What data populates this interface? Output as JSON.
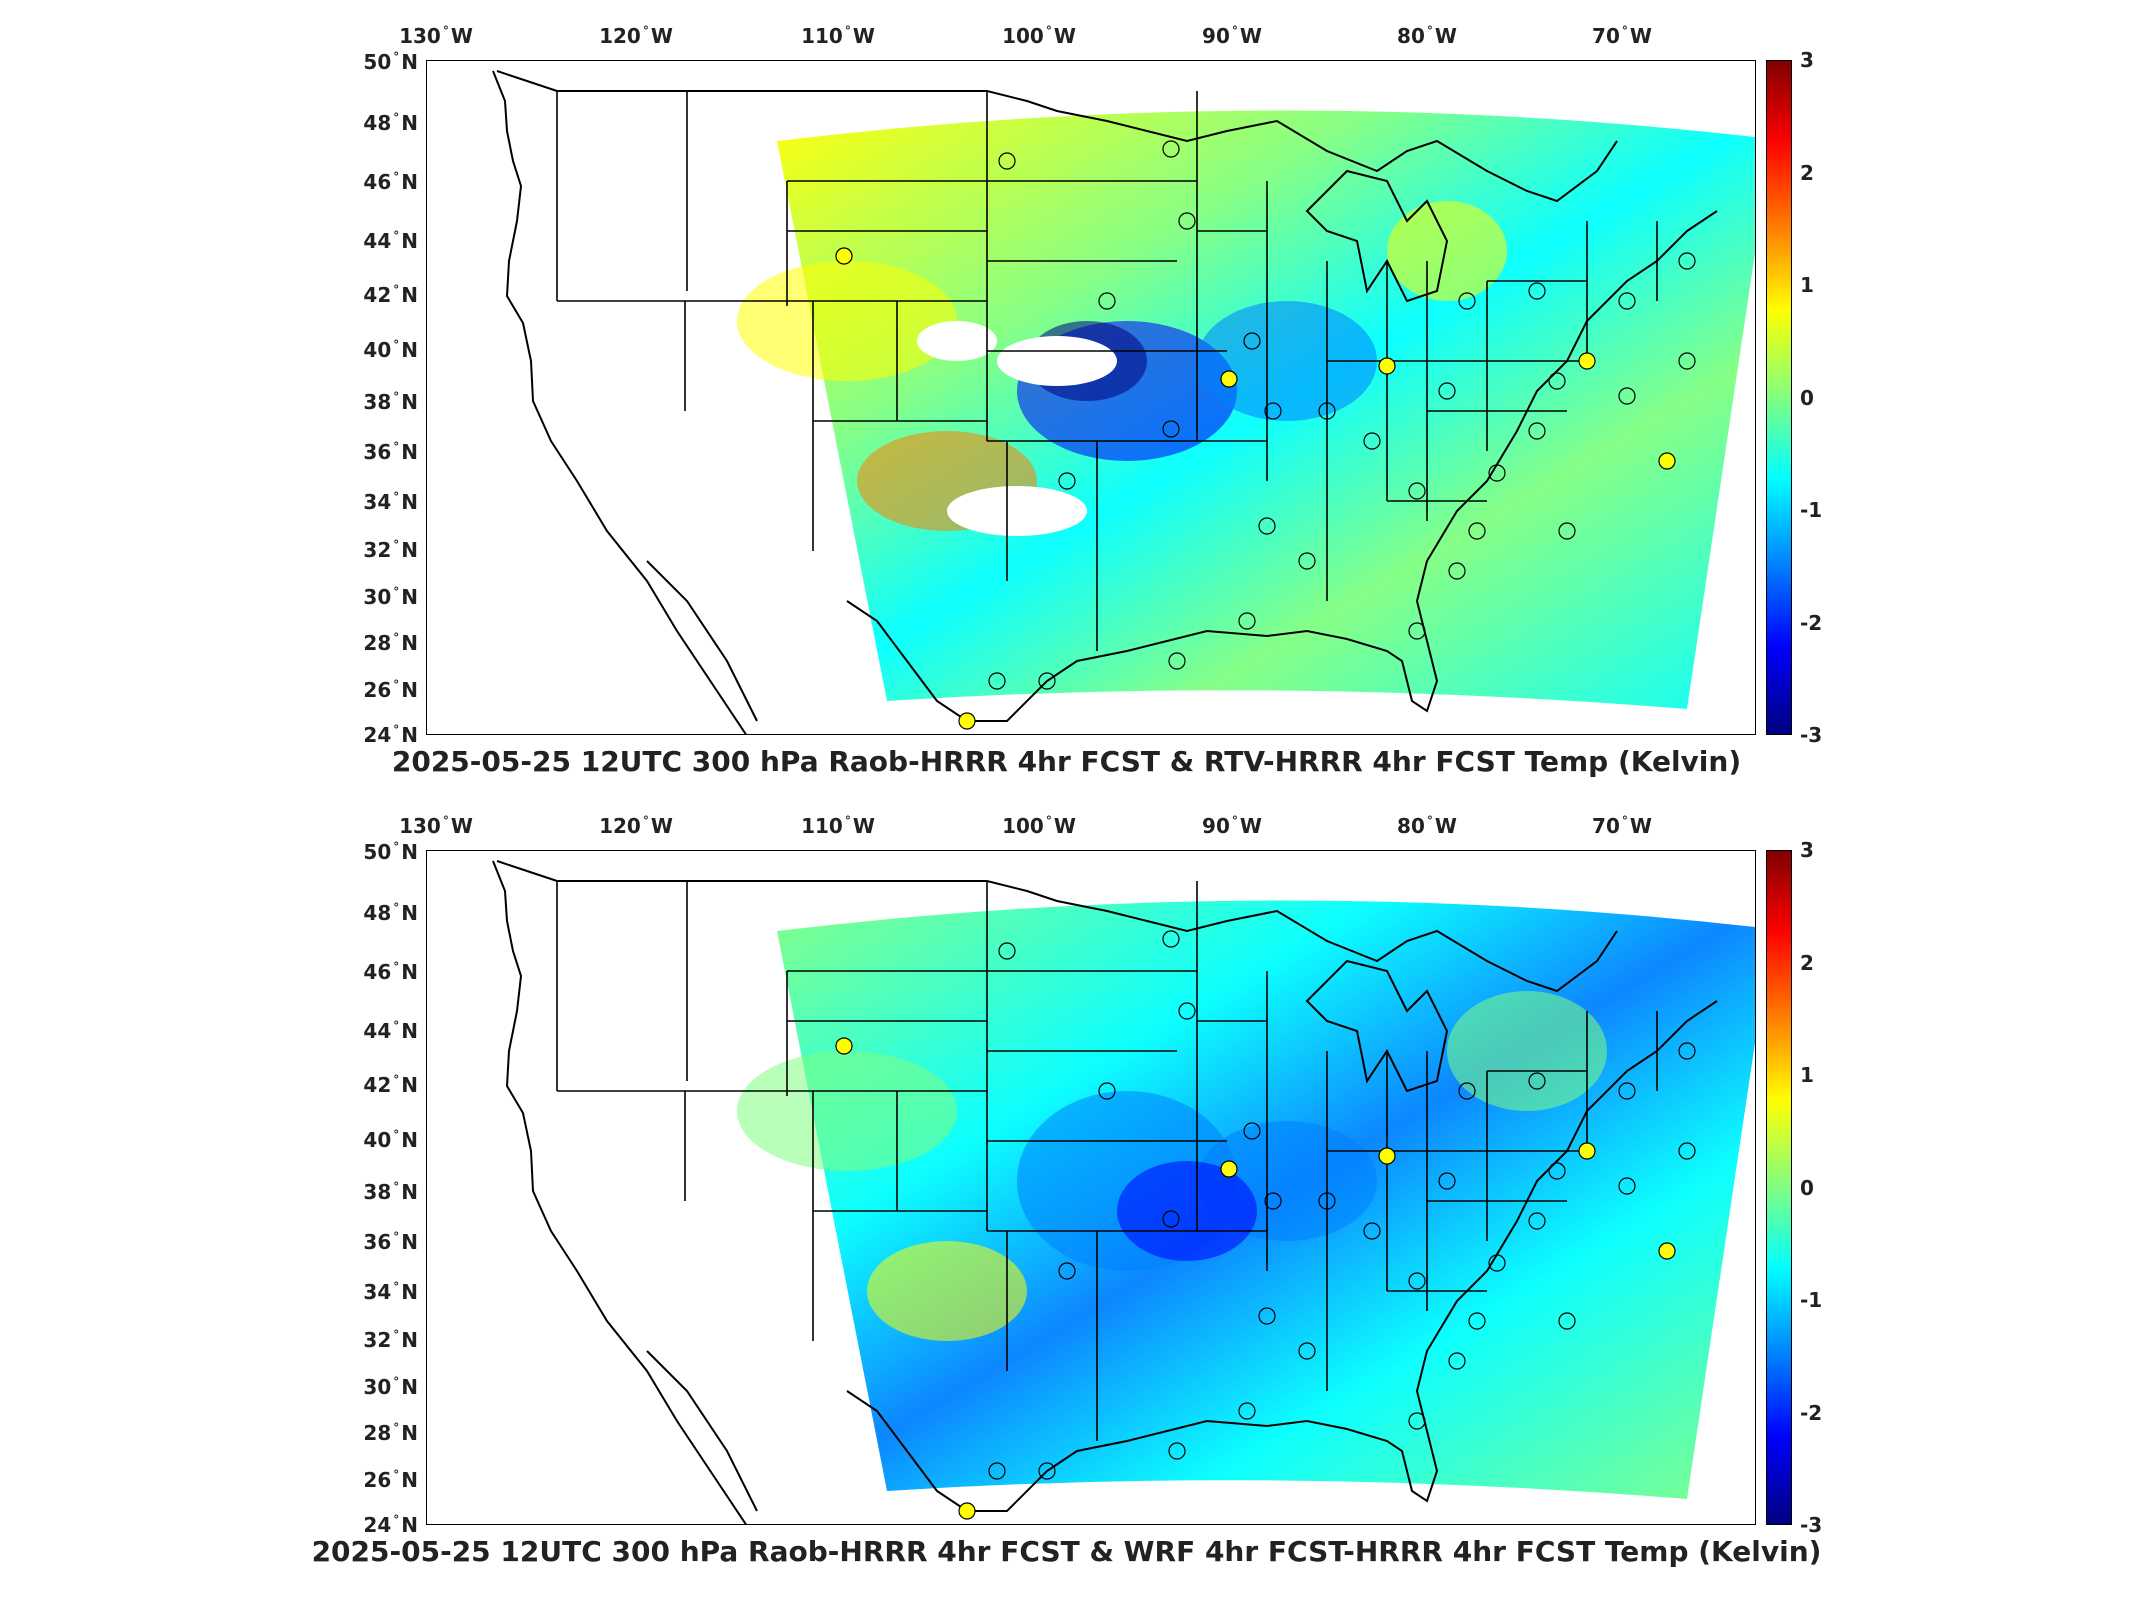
{
  "lon_ticks": [
    "130",
    "120",
    "110",
    "100",
    "90",
    "80",
    "70"
  ],
  "lon_suffix": "W",
  "lat_ticks": [
    "50",
    "48",
    "46",
    "44",
    "42",
    "40",
    "38",
    "36",
    "34",
    "32",
    "30",
    "28",
    "26",
    "24"
  ],
  "lat_suffix": "N",
  "colorbar": {
    "ticks": [
      "3",
      "2",
      "1",
      "0",
      "-1",
      "-2",
      "-3"
    ],
    "colors": [
      "#800000",
      "#ff0000",
      "#ff8000",
      "#ffff00",
      "#80ff80",
      "#00ffff",
      "#0080ff",
      "#0000ff",
      "#000080"
    ]
  },
  "panels": [
    {
      "title": "2025-05-25 12UTC 300 hPa Raob-HRRR 4hr FCST & RTV-HRRR 4hr FCST Temp (Kelvin)"
    },
    {
      "title": "2025-05-25 12UTC 300 hPa Raob-HRRR 4hr FCST & WRF 4hr FCST-HRRR 4hr FCST Temp (Kelvin)"
    }
  ],
  "colors": {
    "field_base": "#5fe6c0",
    "land_lines": "#000000",
    "missing": "#ffffff"
  }
}
